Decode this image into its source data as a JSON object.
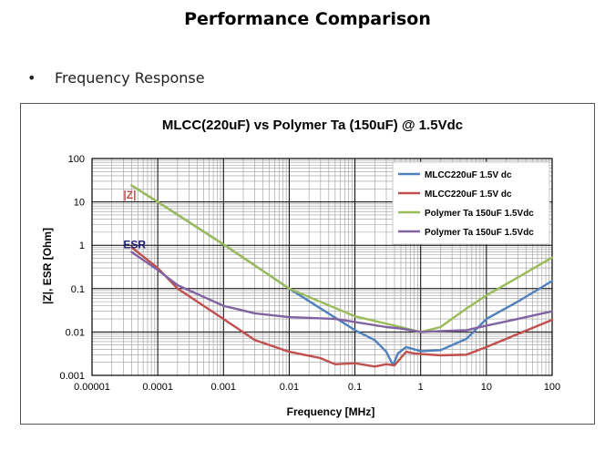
{
  "slide": {
    "title": "Performance Comparison",
    "bullet_symbol": "•",
    "bullet_text": "Frequency Response"
  },
  "chart_data": {
    "type": "line",
    "title": "MLCC(220uF) vs Polymer Ta (150uF) @ 1.5Vdc",
    "xlabel": "Frequency [MHz]",
    "ylabel": "|Z|, ESR [Ohm]",
    "xscale": "log",
    "yscale": "log",
    "xlim": [
      1e-05,
      100
    ],
    "ylim": [
      0.001,
      100
    ],
    "xticks": [
      "0.00001",
      "0.0001",
      "0.001",
      "0.01",
      "0.1",
      "1",
      "10",
      "100"
    ],
    "yticks": [
      "0.001",
      "0.01",
      "0.1",
      "1",
      "10",
      "100"
    ],
    "grid": true,
    "legend_position": "top-right",
    "annotations": [
      {
        "text": "|Z|",
        "color": "#c0504d",
        "x": 3e-05,
        "y": 12
      },
      {
        "text": "ESR",
        "color": "#1f1f6e",
        "x": 3e-05,
        "y": 0.85
      }
    ],
    "series": [
      {
        "name": "MLCC220uF 1.5V dc",
        "color": "#4f81bd",
        "x": [
          4e-05,
          0.0001,
          0.001,
          0.01,
          0.1,
          0.2,
          0.3,
          0.38,
          0.45,
          0.6,
          1,
          2,
          5,
          10,
          30,
          100
        ],
        "y": [
          24,
          10,
          1.05,
          0.1,
          0.011,
          0.0065,
          0.0035,
          0.0017,
          0.0032,
          0.0045,
          0.0036,
          0.0038,
          0.007,
          0.02,
          0.05,
          0.15
        ]
      },
      {
        "name": "MLCC220uF 1.5V dc",
        "color": "#c0504d",
        "x": [
          4e-05,
          0.0001,
          0.0002,
          0.001,
          0.003,
          0.01,
          0.03,
          0.05,
          0.1,
          0.2,
          0.3,
          0.4,
          0.6,
          0.8,
          1,
          2,
          5,
          10,
          30,
          100
        ],
        "y": [
          0.9,
          0.3,
          0.1,
          0.02,
          0.0065,
          0.0035,
          0.0025,
          0.0018,
          0.0019,
          0.0016,
          0.0018,
          0.0017,
          0.0035,
          0.0032,
          0.0031,
          0.0029,
          0.003,
          0.0045,
          0.009,
          0.019
        ]
      },
      {
        "name": "Polymer Ta 150uF 1.5Vdc",
        "color": "#9bbb59",
        "x": [
          4e-05,
          0.0001,
          0.001,
          0.01,
          0.1,
          0.5,
          1,
          2,
          5,
          10,
          30,
          100
        ],
        "y": [
          24,
          10,
          1.05,
          0.1,
          0.023,
          0.013,
          0.01,
          0.013,
          0.035,
          0.07,
          0.18,
          0.52
        ]
      },
      {
        "name": "Polymer Ta 150uF 1.5Vdc",
        "color": "#8064a2",
        "x": [
          4e-05,
          0.0001,
          0.0002,
          0.001,
          0.003,
          0.01,
          0.05,
          0.1,
          0.3,
          0.5,
          1,
          2,
          5,
          10,
          30,
          100
        ],
        "y": [
          0.7,
          0.27,
          0.12,
          0.04,
          0.027,
          0.022,
          0.02,
          0.017,
          0.013,
          0.012,
          0.01,
          0.0105,
          0.011,
          0.014,
          0.02,
          0.03
        ]
      }
    ]
  }
}
